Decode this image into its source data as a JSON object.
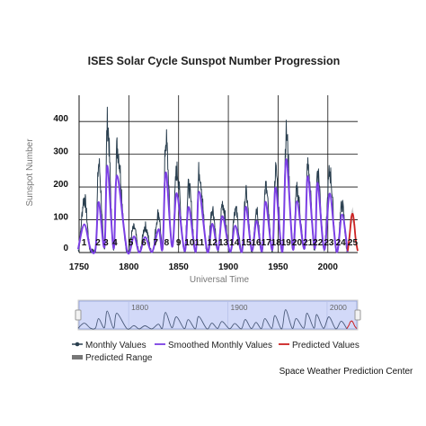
{
  "chart_data": {
    "type": "line",
    "title": "ISES Solar Cycle Sunspot Number Progression",
    "xlabel": "Universal Time",
    "ylabel": "Sunspot Number",
    "xlim": [
      1750,
      2030
    ],
    "ylim": [
      0,
      480
    ],
    "x_ticks": [
      "1750",
      "1800",
      "1850",
      "1900",
      "1950",
      "2000"
    ],
    "y_ticks": [
      "0",
      "100",
      "200",
      "300",
      "400"
    ],
    "grid": true,
    "cycle_labels": [
      {
        "label": "1",
        "x": 1755
      },
      {
        "label": "2",
        "x": 1769
      },
      {
        "label": "3",
        "x": 1777
      },
      {
        "label": "4",
        "x": 1786
      },
      {
        "label": "5",
        "x": 1802
      },
      {
        "label": "6",
        "x": 1815
      },
      {
        "label": "7",
        "x": 1827
      },
      {
        "label": "8",
        "x": 1838
      },
      {
        "label": "9",
        "x": 1850
      },
      {
        "label": "10",
        "x": 1861
      },
      {
        "label": "11",
        "x": 1871
      },
      {
        "label": "12",
        "x": 1884
      },
      {
        "label": "13",
        "x": 1895
      },
      {
        "label": "14",
        "x": 1906
      },
      {
        "label": "15",
        "x": 1918
      },
      {
        "label": "16",
        "x": 1928
      },
      {
        "label": "17",
        "x": 1938
      },
      {
        "label": "18",
        "x": 1948
      },
      {
        "label": "19",
        "x": 1958
      },
      {
        "label": "20",
        "x": 1969
      },
      {
        "label": "21",
        "x": 1980
      },
      {
        "label": "22",
        "x": 1990
      },
      {
        "label": "23",
        "x": 2001
      },
      {
        "label": "24",
        "x": 2013
      },
      {
        "label": "25",
        "x": 2025
      }
    ],
    "series": [
      {
        "name": "Monthly Values",
        "color": "#2a3f4f",
        "x": [
          1749.0,
          1755.2,
          1761.5,
          1766.5,
          1769.7,
          1775.5,
          1778.4,
          1784.7,
          1788.1,
          1798.3,
          1805.2,
          1810.6,
          1816.4,
          1823.3,
          1829.9,
          1833.9,
          1837.2,
          1843.5,
          1848.1,
          1856.0,
          1860.1,
          1867.2,
          1870.6,
          1878.9,
          1883.9,
          1889.6,
          1894.1,
          1901.7,
          1907.0,
          1913.6,
          1917.6,
          1923.6,
          1928.4,
          1933.8,
          1937.4,
          1944.2,
          1947.5,
          1954.3,
          1958.2,
          1964.9,
          1968.9,
          1976.5,
          1979.9,
          1986.8,
          1989.6,
          1996.4,
          2001.9,
          2008.9,
          2014.3,
          2019.9
        ],
        "values": [
          5,
          165,
          5,
          5,
          270,
          10,
          395,
          5,
          320,
          2,
          75,
          0,
          80,
          0,
          120,
          10,
          345,
          15,
          250,
          5,
          200,
          5,
          250,
          0,
          135,
          5,
          150,
          0,
          135,
          0,
          180,
          5,
          135,
          0,
          200,
          5,
          250,
          0,
          360,
          10,
          190,
          10,
          265,
          10,
          250,
          10,
          245,
          0,
          145,
          0
        ]
      },
      {
        "name": "Smoothed Monthly Values",
        "color": "#7b3fe4",
        "x": [
          1749.0,
          1755.2,
          1761.5,
          1766.5,
          1769.7,
          1775.5,
          1778.4,
          1784.7,
          1788.1,
          1798.3,
          1805.2,
          1810.6,
          1816.4,
          1823.3,
          1829.9,
          1833.9,
          1837.2,
          1843.5,
          1848.1,
          1856.0,
          1860.1,
          1867.2,
          1870.6,
          1878.9,
          1883.9,
          1889.6,
          1894.1,
          1901.7,
          1907.0,
          1913.6,
          1917.6,
          1923.6,
          1928.4,
          1933.8,
          1937.4,
          1944.2,
          1947.5,
          1954.3,
          1958.2,
          1964.9,
          1968.9,
          1976.5,
          1979.9,
          1986.8,
          1989.6,
          1996.4,
          2001.9,
          2008.9,
          2014.3,
          2019.9
        ],
        "values": [
          10,
          86,
          11,
          12,
          154,
          17,
          265,
          12,
          235,
          4,
          49,
          0,
          47,
          2,
          71,
          12,
          245,
          18,
          181,
          4,
          139,
          2,
          186,
          2,
          88,
          8,
          111,
          3,
          82,
          2,
          140,
          6,
          97,
          4,
          155,
          8,
          198,
          3,
          285,
          10,
          156,
          12,
          233,
          12,
          213,
          9,
          180,
          2,
          116,
          2
        ]
      },
      {
        "name": "Predicted Values",
        "color": "#cc2222",
        "x": [
          2020,
          2022,
          2023.5,
          2025,
          2026.5,
          2028,
          2030
        ],
        "values": [
          5,
          55,
          105,
          118,
          90,
          40,
          5
        ]
      }
    ],
    "predicted_range": {
      "name": "Predicted Range",
      "color": "#777777"
    },
    "navigator": {
      "tick_labels": [
        "1800",
        "1900",
        "2000"
      ]
    }
  },
  "credit": "Space Weather Prediction Center"
}
